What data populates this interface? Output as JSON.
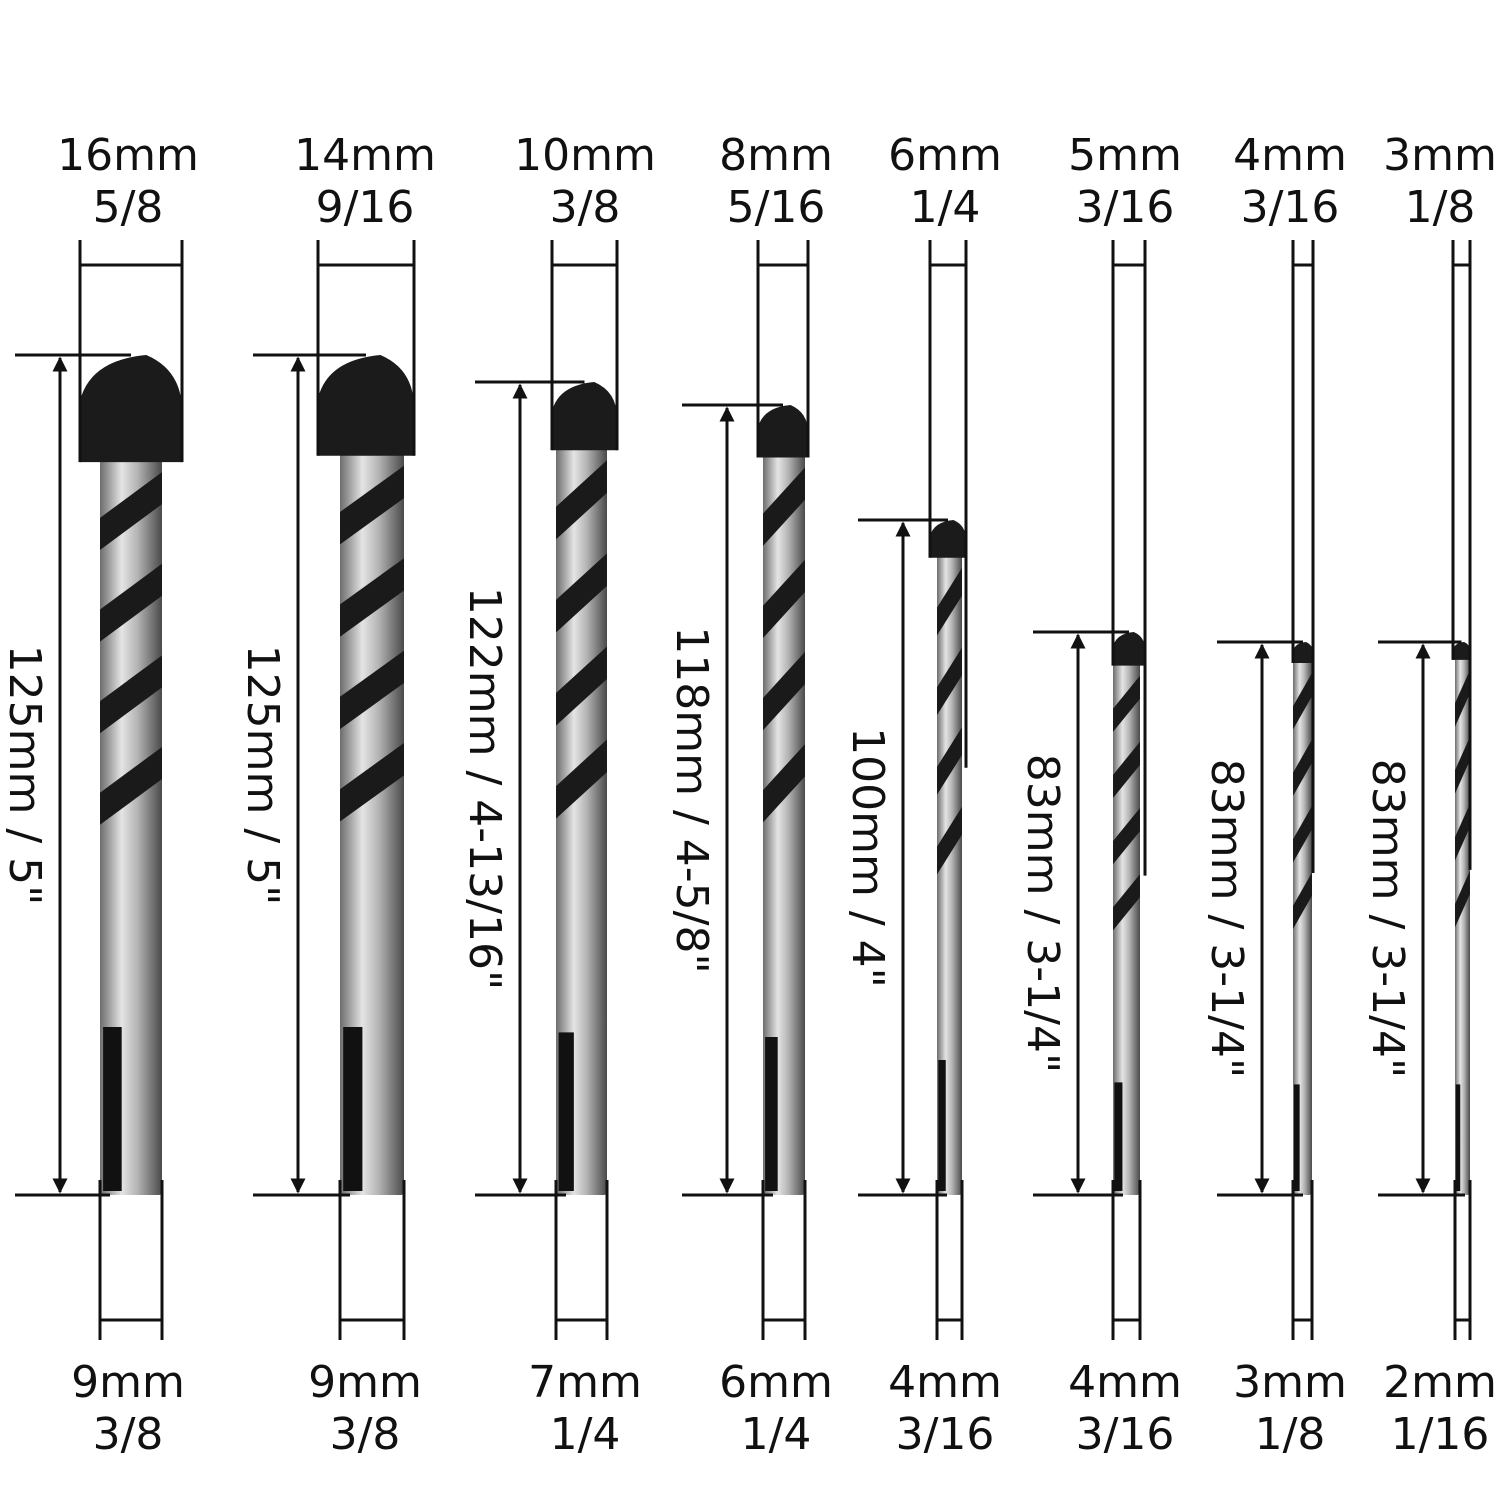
{
  "bits": [
    {
      "top_mm": "16mm",
      "top_in": "5/8",
      "length": "125mm / 5\"",
      "bottom_mm": "9mm",
      "bottom_in": "3/8"
    },
    {
      "top_mm": "14mm",
      "top_in": "9/16",
      "length": "125mm / 5\"",
      "bottom_mm": "9mm",
      "bottom_in": "3/8"
    },
    {
      "top_mm": "10mm",
      "top_in": "3/8",
      "length": "122mm / 4-13/16\"",
      "bottom_mm": "7mm",
      "bottom_in": "1/4"
    },
    {
      "top_mm": "8mm",
      "top_in": "5/16",
      "length": "118mm / 4-5/8\"",
      "bottom_mm": "6mm",
      "bottom_in": "1/4"
    },
    {
      "top_mm": "6mm",
      "top_in": "1/4",
      "length": "100mm / 4\"",
      "bottom_mm": "4mm",
      "bottom_in": "3/16"
    },
    {
      "top_mm": "5mm",
      "top_in": "3/16",
      "length": "83mm / 3-1/4\"",
      "bottom_mm": "4mm",
      "bottom_in": "3/16"
    },
    {
      "top_mm": "4mm",
      "top_in": "3/16",
      "length": "83mm / 3-1/4\"",
      "bottom_mm": "3mm",
      "bottom_in": "1/8"
    },
    {
      "top_mm": "3mm",
      "top_in": "1/8",
      "length": "83mm / 3-1/4\"",
      "bottom_mm": "2mm",
      "bottom_in": "1/16"
    }
  ]
}
